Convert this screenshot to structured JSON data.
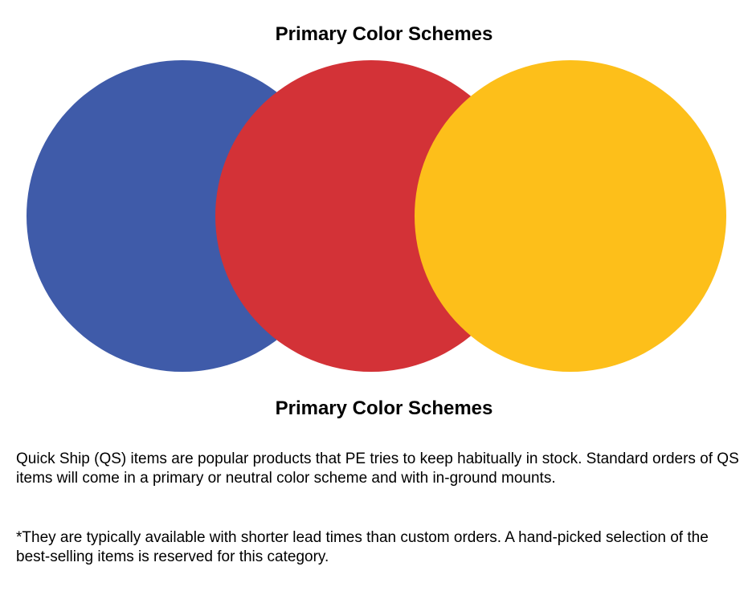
{
  "heading": "Primary Color Schemes",
  "caption": "Primary Color Schemes",
  "circles": [
    {
      "name": "blue",
      "color": "#3F5BA9"
    },
    {
      "name": "red",
      "color": "#D33237"
    },
    {
      "name": "yellow",
      "color": "#FDBF1A"
    }
  ],
  "paragraphs": [
    "Quick Ship (QS) items are popular products that PE tries to keep habitually in stock. Standard orders of QS items will come in a primary or neutral color scheme and with in-ground mounts.",
    "*They are typically available with shorter lead times than custom orders. A hand-picked selection of the best-selling items is reserved for this category."
  ]
}
